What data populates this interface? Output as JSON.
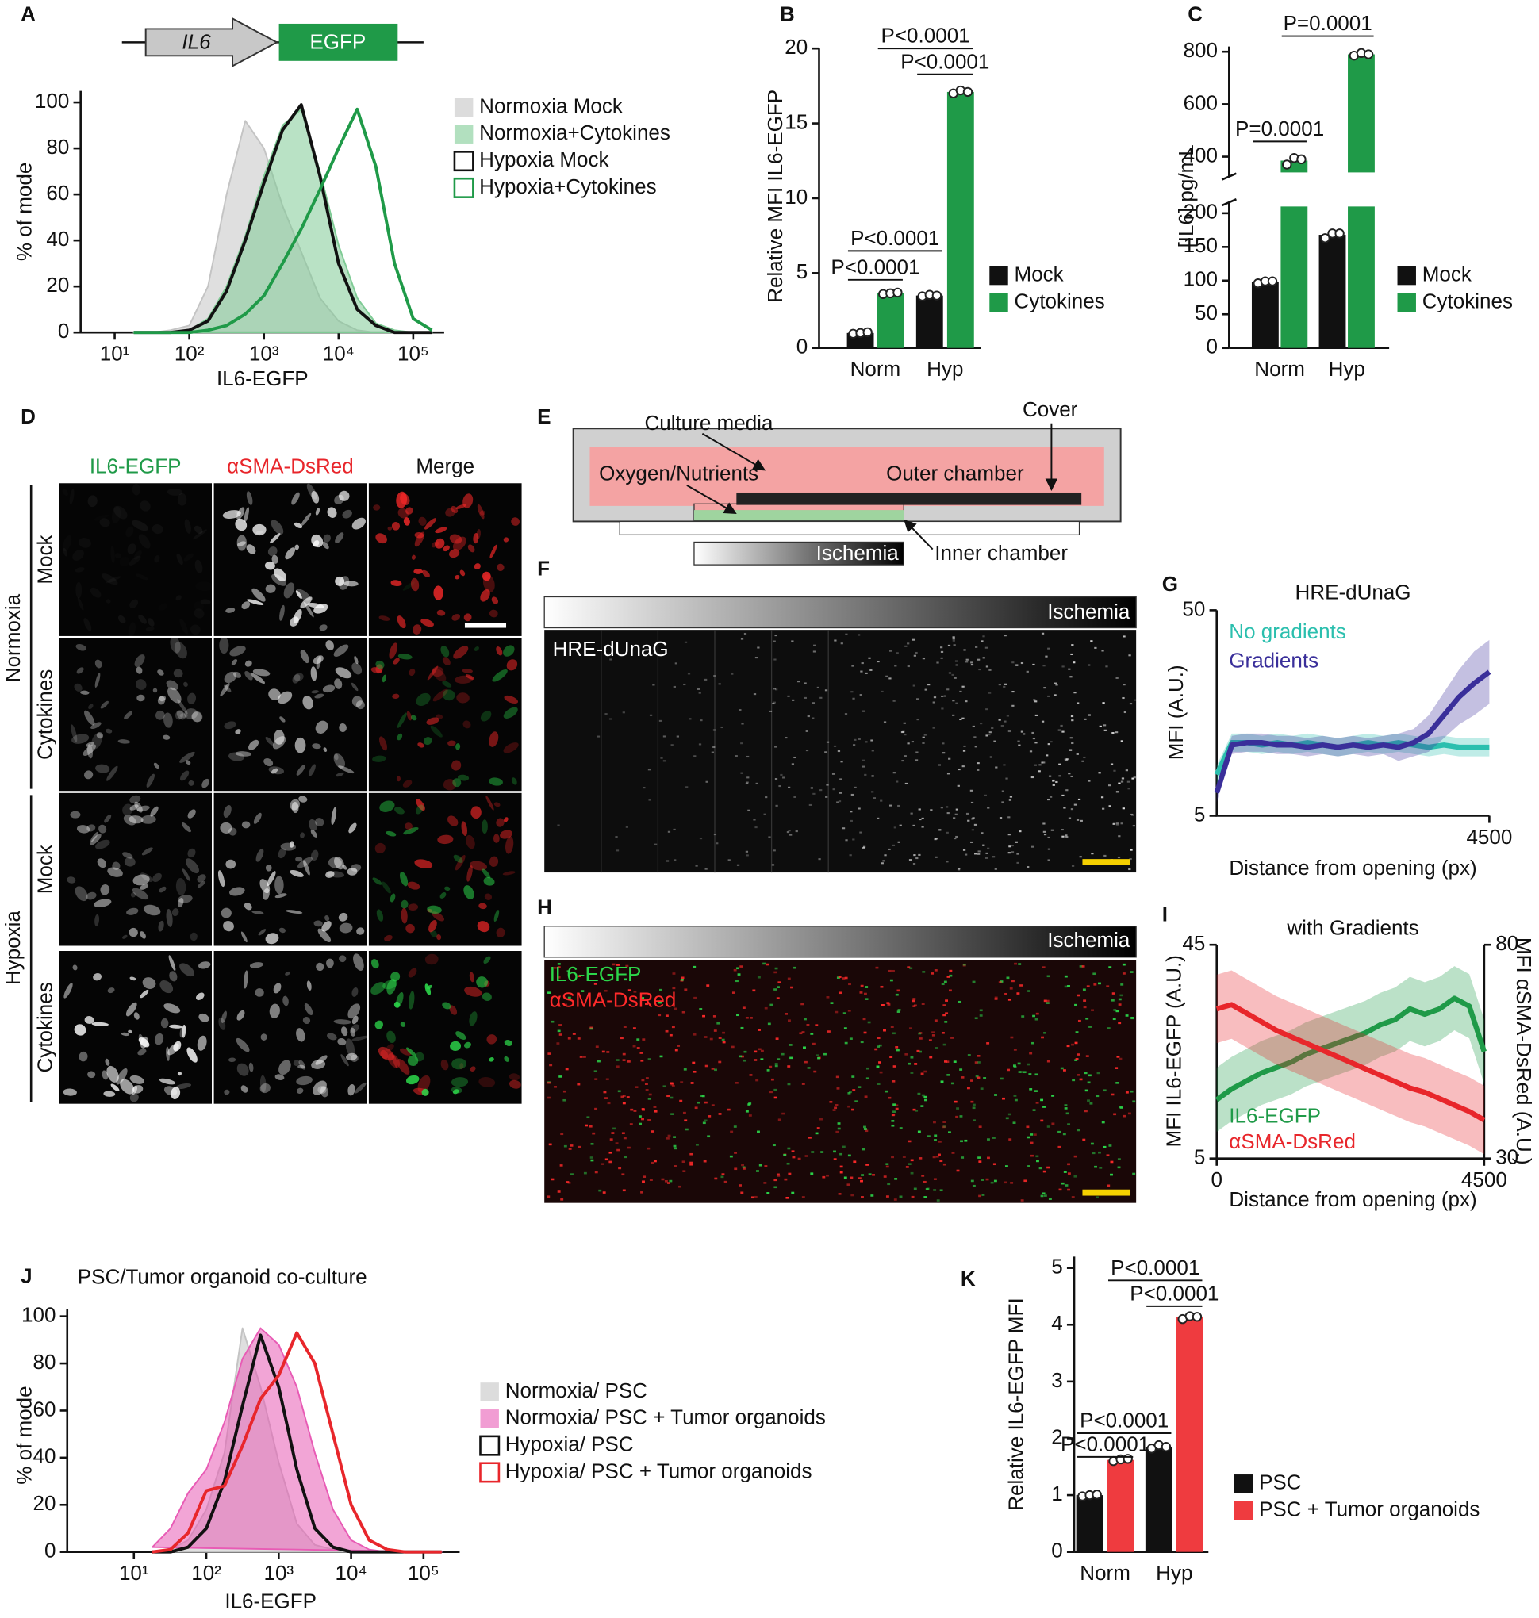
{
  "panel_labels": [
    "A",
    "B",
    "C",
    "D",
    "E",
    "F",
    "G",
    "H",
    "I",
    "J",
    "K"
  ],
  "construct": {
    "gene": "IL6",
    "reporter": "EGFP"
  },
  "panel_d": {
    "columns": [
      "IL6-EGFP",
      "αSMA-DsRed",
      "Merge"
    ],
    "groups": [
      {
        "name": "Normoxia",
        "rows": [
          "Mock",
          "Cytokines"
        ]
      },
      {
        "name": "Hypoxia",
        "rows": [
          "Mock",
          "Cytokines"
        ]
      }
    ]
  },
  "panel_e": {
    "culture_media": "Culture media",
    "cover": "Cover",
    "oxygen": "Oxygen/Nutrients",
    "outer_chamber": "Outer chamber",
    "ischemia": "Ischemia",
    "inner_chamber": "Inner chamber"
  },
  "panel_f": {
    "gradient_label": "Ischemia",
    "image_label": "HRE-dUnaG"
  },
  "panel_h": {
    "gradient_label": "Ischemia",
    "image_labels": [
      "IL6-EGFP",
      "αSMA-DsRed"
    ]
  },
  "chart_data": [
    {
      "type": "line",
      "xscale": "log",
      "x_label": "IL6-EGFP",
      "y_label": "% of mode",
      "legend_style": "swatch",
      "x": [
        18,
        32,
        56,
        100,
        178,
        316,
        562,
        1000,
        1778,
        3162,
        5623,
        10000,
        17783,
        31623,
        56234,
        100000,
        177828
      ],
      "xlim": [
        3.5,
        260000
      ],
      "xticks": [
        {
          "value": 10,
          "label": "10¹"
        },
        {
          "value": 100,
          "label": "10²"
        },
        {
          "value": 1000,
          "label": "10³"
        },
        {
          "value": 10000,
          "label": "10⁴"
        },
        {
          "value": 100000,
          "label": "10⁵"
        }
      ],
      "ylim": [
        0,
        105
      ],
      "yticks": [
        0,
        20,
        40,
        60,
        80,
        100
      ],
      "series": [
        {
          "name": "Normoxia Mock",
          "color": "#c4c4c4",
          "style": "filled",
          "values": [
            0,
            0,
            1,
            3,
            20,
            60,
            92,
            80,
            55,
            35,
            15,
            5,
            1,
            0,
            0,
            0,
            0
          ]
        },
        {
          "name": "Normoxia+Cytokines",
          "color": "#7fcb95",
          "style": "filled",
          "values": [
            0,
            0,
            0,
            1,
            6,
            20,
            42,
            68,
            90,
            97,
            70,
            38,
            15,
            4,
            1,
            0,
            0
          ]
        },
        {
          "name": "Hypoxia Mock",
          "color": "#111111",
          "style": "line",
          "values": [
            0,
            0,
            0,
            1,
            5,
            18,
            40,
            65,
            88,
            99,
            68,
            30,
            10,
            3,
            0,
            0,
            0
          ]
        },
        {
          "name": "Hypoxia+Cytokines",
          "color": "#1f9a48",
          "style": "line",
          "values": [
            0,
            0,
            0,
            0,
            1,
            3,
            8,
            16,
            30,
            45,
            62,
            80,
            97,
            72,
            30,
            6,
            1
          ]
        }
      ]
    },
    {
      "type": "bar",
      "categories": [
        "Norm",
        "Hyp"
      ],
      "y_label": "Relative MFI IL6-EGFP",
      "legend_style": "swatch",
      "ylim": [
        0,
        20
      ],
      "yticks": [
        0,
        5,
        10,
        15,
        20
      ],
      "series": [
        {
          "name": "Mock",
          "color": "#111111",
          "values": [
            1,
            3.5
          ],
          "points": [
            [
              0.95,
              1,
              1.05
            ],
            [
              3.45,
              3.55,
              3.5
            ]
          ]
        },
        {
          "name": "Cytokines",
          "color": "#1f9a48",
          "values": [
            3.65,
            17.1
          ],
          "points": [
            [
              3.6,
              3.65,
              3.7
            ],
            [
              17,
              17.2,
              17.1
            ]
          ]
        }
      ],
      "annotations": [
        "P<0.0001",
        "P<0.0001",
        "P<0.0001",
        "P<0.0001"
      ]
    },
    {
      "type": "bar",
      "categories": [
        "Norm",
        "Hyp"
      ],
      "y_label": "[IL6] pg/mL",
      "legend_style": "swatch",
      "ylim": [
        0,
        820
      ],
      "ybreak": [
        210,
        340
      ],
      "yticks": [
        0,
        50,
        100,
        150,
        200,
        400,
        600,
        800
      ],
      "series": [
        {
          "name": "Mock",
          "color": "#111111",
          "values": [
            98,
            168
          ],
          "points": [
            [
              96,
              99,
              99
            ],
            [
              163,
              170,
              170
            ]
          ]
        },
        {
          "name": "Cytokines",
          "color": "#1f9a48",
          "values": [
            385,
            790
          ],
          "points": [
            [
              370,
              395,
              390
            ],
            [
              785,
              795,
              790
            ]
          ]
        }
      ],
      "annotations": [
        "P=0.0001",
        "P=0.0001"
      ]
    },
    {
      "type": "line",
      "title": "HRE-dUnaG",
      "x_label": "Distance from opening (px)",
      "y_label": "MFI (A.U.)",
      "legend_style": "text",
      "x": [
        0,
        250,
        500,
        750,
        1000,
        1250,
        1500,
        1750,
        2000,
        2250,
        2500,
        2750,
        3000,
        3250,
        3500,
        3750,
        4000,
        4250,
        4500
      ],
      "xlim": [
        0,
        4500
      ],
      "xticks": [
        4500
      ],
      "ylim": [
        5,
        50
      ],
      "yticks": [
        5,
        50
      ],
      "series": [
        {
          "name": "No gradients",
          "color": "#2bbfae",
          "values": [
            14,
            21,
            21,
            20.5,
            21,
            20.5,
            21,
            20.5,
            20,
            20.5,
            21,
            20.5,
            21,
            20.5,
            20,
            20.5,
            20,
            20,
            20
          ],
          "errors": [
            2,
            2,
            2,
            2,
            2,
            2,
            2,
            2,
            2,
            2,
            2,
            2,
            2,
            2,
            2,
            2,
            2,
            2,
            2
          ]
        },
        {
          "name": "Gradients",
          "color": "#3a2f9a",
          "values": [
            10,
            20.5,
            21,
            21,
            20.5,
            20.5,
            20,
            20.5,
            20,
            20.5,
            20,
            20.5,
            20,
            21,
            23,
            27,
            31,
            34,
            36.5
          ],
          "errors": [
            2,
            2,
            2,
            2,
            2,
            2,
            2,
            2,
            2,
            2,
            2,
            2,
            3,
            3,
            4,
            5,
            6,
            7,
            7
          ]
        }
      ]
    },
    {
      "type": "line",
      "title": "with Gradients",
      "x_label": "Distance from opening (px)",
      "y_label": "MFI IL6-EGFP (A.U.)",
      "y2_label": "MFI αSMA-DsRed (A.U.)",
      "legend_style": "text",
      "x": [
        0,
        250,
        500,
        750,
        1000,
        1250,
        1500,
        1750,
        2000,
        2250,
        2500,
        2750,
        3000,
        3250,
        3500,
        3750,
        4000,
        4250,
        4500
      ],
      "xlim": [
        0,
        4500
      ],
      "xticks": [
        0,
        4500
      ],
      "ylim": [
        5,
        45
      ],
      "yticks": [
        5,
        45
      ],
      "y2lim": [
        30,
        80
      ],
      "y2ticks": [
        30,
        80
      ],
      "series": [
        {
          "name": "IL6-EGFP",
          "color": "#1f9a48",
          "values": [
            16,
            18,
            19.5,
            21,
            22,
            23,
            24.5,
            25.5,
            26.5,
            27.5,
            28.5,
            30,
            31,
            33,
            32,
            33,
            35,
            33.5,
            25
          ],
          "errors": [
            6,
            6,
            6,
            6,
            6,
            6,
            6,
            6,
            6,
            6,
            6,
            6,
            6,
            6,
            6,
            6,
            6,
            6,
            6
          ]
        },
        {
          "name": "αSMA-DsRed",
          "color": "#e8262b",
          "axis": "y2",
          "values": [
            65,
            66,
            64,
            62,
            60,
            58.5,
            57,
            55.5,
            54,
            52.5,
            51,
            49.5,
            48,
            46.5,
            45.5,
            44,
            42.5,
            41,
            39
          ],
          "errors": [
            8,
            8,
            8,
            8,
            8,
            8,
            8,
            8,
            8,
            8,
            8,
            8,
            8,
            8,
            8,
            8,
            8,
            8,
            8
          ]
        }
      ]
    },
    {
      "type": "line",
      "xscale": "log",
      "title": "PSC/Tumor organoid co-culture",
      "x_label": "IL6-EGFP",
      "y_label": "% of mode",
      "legend_style": "swatch",
      "x": [
        18,
        32,
        56,
        100,
        178,
        316,
        562,
        1000,
        1778,
        3162,
        5623,
        10000,
        17783,
        31623,
        56234,
        100000,
        177828
      ],
      "xlim": [
        1.2,
        316000
      ],
      "xticks": [
        {
          "value": 10,
          "label": "10¹"
        },
        {
          "value": 100,
          "label": "10²"
        },
        {
          "value": 1000,
          "label": "10³"
        },
        {
          "value": 10000,
          "label": "10⁴"
        },
        {
          "value": 100000,
          "label": "10⁵"
        }
      ],
      "ylim": [
        0,
        103
      ],
      "yticks": [
        0,
        20,
        40,
        60,
        80,
        100
      ],
      "series": [
        {
          "name": "Normoxia/ PSC",
          "color": "#c4c4c4",
          "style": "filled",
          "values": [
            0,
            1,
            5,
            18,
            42,
            95,
            70,
            38,
            12,
            3,
            1,
            0,
            0,
            0,
            0,
            0,
            0
          ]
        },
        {
          "name": "Normoxia/ PSC + Tumor organoids",
          "color": "#e85bb5",
          "style": "filled",
          "values": [
            2,
            10,
            25,
            35,
            55,
            82,
            95,
            88,
            70,
            42,
            18,
            5,
            1,
            0,
            0,
            0,
            0
          ]
        },
        {
          "name": "Hypoxia/ PSC",
          "color": "#111111",
          "style": "line",
          "values": [
            0,
            0,
            2,
            10,
            30,
            62,
            92,
            70,
            35,
            10,
            2,
            0,
            0,
            0,
            0,
            0,
            0
          ]
        },
        {
          "name": "Hypoxia/ PSC + Tumor organoids",
          "color": "#e8262b",
          "style": "line",
          "values": [
            0,
            1,
            8,
            26,
            28,
            45,
            65,
            75,
            93,
            80,
            50,
            20,
            5,
            1,
            0,
            0,
            0
          ]
        }
      ]
    },
    {
      "type": "bar",
      "categories": [
        "Norm",
        "Hyp"
      ],
      "y_label": "Relative IL6-EGFP MFI",
      "legend_style": "swatch",
      "ylim": [
        0,
        5.2
      ],
      "yticks": [
        0,
        1,
        2,
        3,
        4,
        5
      ],
      "series": [
        {
          "name": "PSC",
          "color": "#111111",
          "values": [
            1,
            1.85
          ],
          "points": [
            [
              0.98,
              1,
              1.01
            ],
            [
              1.82,
              1.88,
              1.85
            ]
          ]
        },
        {
          "name": "PSC + Tumor organoids",
          "color": "#ef3b3f",
          "values": [
            1.62,
            4.13
          ],
          "points": [
            [
              1.6,
              1.63,
              1.64
            ],
            [
              4.1,
              4.15,
              4.14
            ]
          ]
        }
      ],
      "annotations": [
        "P<0.0001",
        "P<0.0001",
        "P<0.0001",
        "P<0.0001"
      ]
    }
  ]
}
